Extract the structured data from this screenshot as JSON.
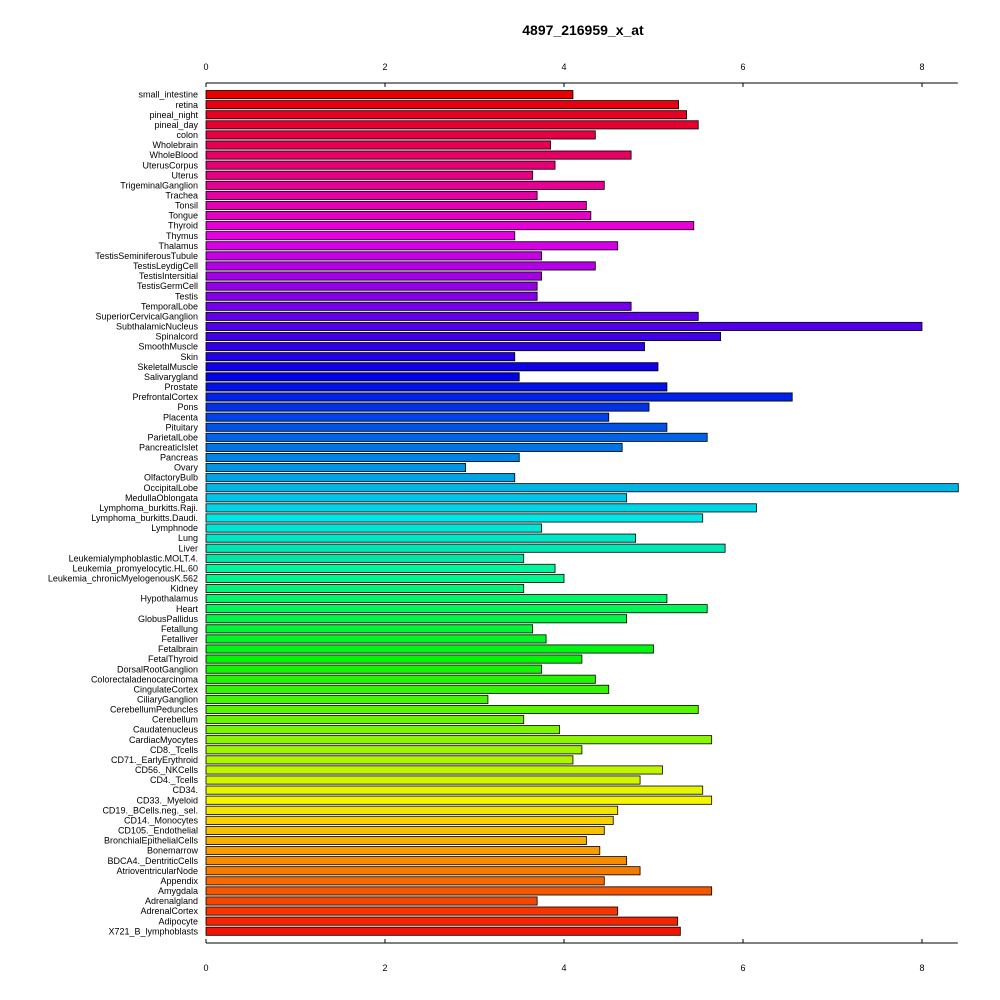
{
  "chart_data": {
    "type": "bar",
    "orientation": "horizontal",
    "title": "4897_216959_x_at",
    "xlabel": "",
    "ylabel": "",
    "xlim": [
      0,
      8.4
    ],
    "x_ticks": [
      0,
      2,
      4,
      6,
      8
    ],
    "x_tick_labels": [
      "0",
      "2",
      "4",
      "6",
      "8"
    ],
    "axes": "top and bottom",
    "grid": false,
    "legend": "none",
    "color_scheme": "rainbow from red at the bottom through blue to red at the top",
    "categories": [
      "small_intestine",
      "retina",
      "pineal_night",
      "pineal_day",
      "colon",
      "Wholebrain",
      "WholeBlood",
      "UterusCorpus",
      "Uterus",
      "TrigeminalGanglion",
      "Trachea",
      "Tonsil",
      "Tongue",
      "Thyroid",
      "Thymus",
      "Thalamus",
      "TestisSeminiferousTubule",
      "TestisLeydigCell",
      "TestisIntersitial",
      "TestisGermCell",
      "Testis",
      "TemporalLobe",
      "SuperiorCervicalGanglion",
      "SubthalamicNucleus",
      "Spinalcord",
      "SmoothMuscle",
      "Skin",
      "SkeletalMuscle",
      "Salivarygland",
      "Prostate",
      "PrefrontalCortex",
      "Pons",
      "Placenta",
      "Pituitary",
      "ParietalLobe",
      "PancreaticIslet",
      "Pancreas",
      "Ovary",
      "OlfactoryBulb",
      "OccipitalLobe",
      "MedullaOblongata",
      "Lymphoma_burkitts.Raji.",
      "Lymphoma_burkitts.Daudi.",
      "Lymphnode",
      "Lung",
      "Liver",
      "Leukemialymphoblastic.MOLT.4.",
      "Leukemia_promyelocytic.HL.60",
      "Leukemia_chronicMyelogenousK.562",
      "Kidney",
      "Hypothalamus",
      "Heart",
      "GlobusPallidus",
      "Fetallung",
      "Fetalliver",
      "Fetalbrain",
      "FetalThyroid",
      "DorsalRootGanglion",
      "Colorectaladenocarcinoma",
      "CingulateCortex",
      "CiliaryGanglion",
      "CerebellumPeduncles",
      "Cerebellum",
      "Caudatenucleus",
      "CardiacMyocytes",
      "CD8._Tcells",
      "CD71._EarlyErythroid",
      "CD56._NKCells",
      "CD4._Tcells",
      "CD34.",
      "CD33._Myeloid",
      "CD19._BCells.neg._sel.",
      "CD14._Monocytes",
      "CD105._Endothelial",
      "BronchialEpithelialCells",
      "Bonemarrow",
      "BDCA4._DentriticCells",
      "AtrioventricularNode",
      "Appendix",
      "Amygdala",
      "Adrenalgland",
      "AdrenalCortex",
      "Adipocyte",
      "X721_B_lymphoblasts"
    ],
    "values": [
      4.1,
      5.28,
      5.37,
      5.5,
      4.35,
      3.85,
      4.75,
      3.9,
      3.65,
      4.45,
      3.7,
      4.25,
      4.3,
      5.45,
      3.45,
      4.6,
      3.75,
      4.35,
      3.75,
      3.7,
      3.7,
      4.75,
      5.5,
      8.0,
      5.75,
      4.9,
      3.45,
      5.05,
      3.5,
      5.15,
      6.55,
      4.95,
      4.5,
      5.15,
      5.6,
      4.65,
      3.5,
      2.9,
      3.45,
      8.55,
      4.7,
      6.15,
      5.55,
      3.75,
      4.8,
      5.8,
      3.55,
      3.9,
      4.0,
      3.55,
      5.15,
      5.6,
      4.7,
      3.65,
      3.8,
      5.0,
      4.2,
      3.75,
      4.35,
      4.5,
      3.15,
      5.5,
      3.55,
      3.95,
      5.65,
      4.2,
      4.1,
      5.1,
      4.85,
      5.55,
      5.65,
      4.6,
      4.55,
      4.45,
      4.25,
      4.4,
      4.7,
      4.85,
      4.45,
      5.65,
      3.7,
      4.6,
      5.27,
      5.3
    ]
  }
}
